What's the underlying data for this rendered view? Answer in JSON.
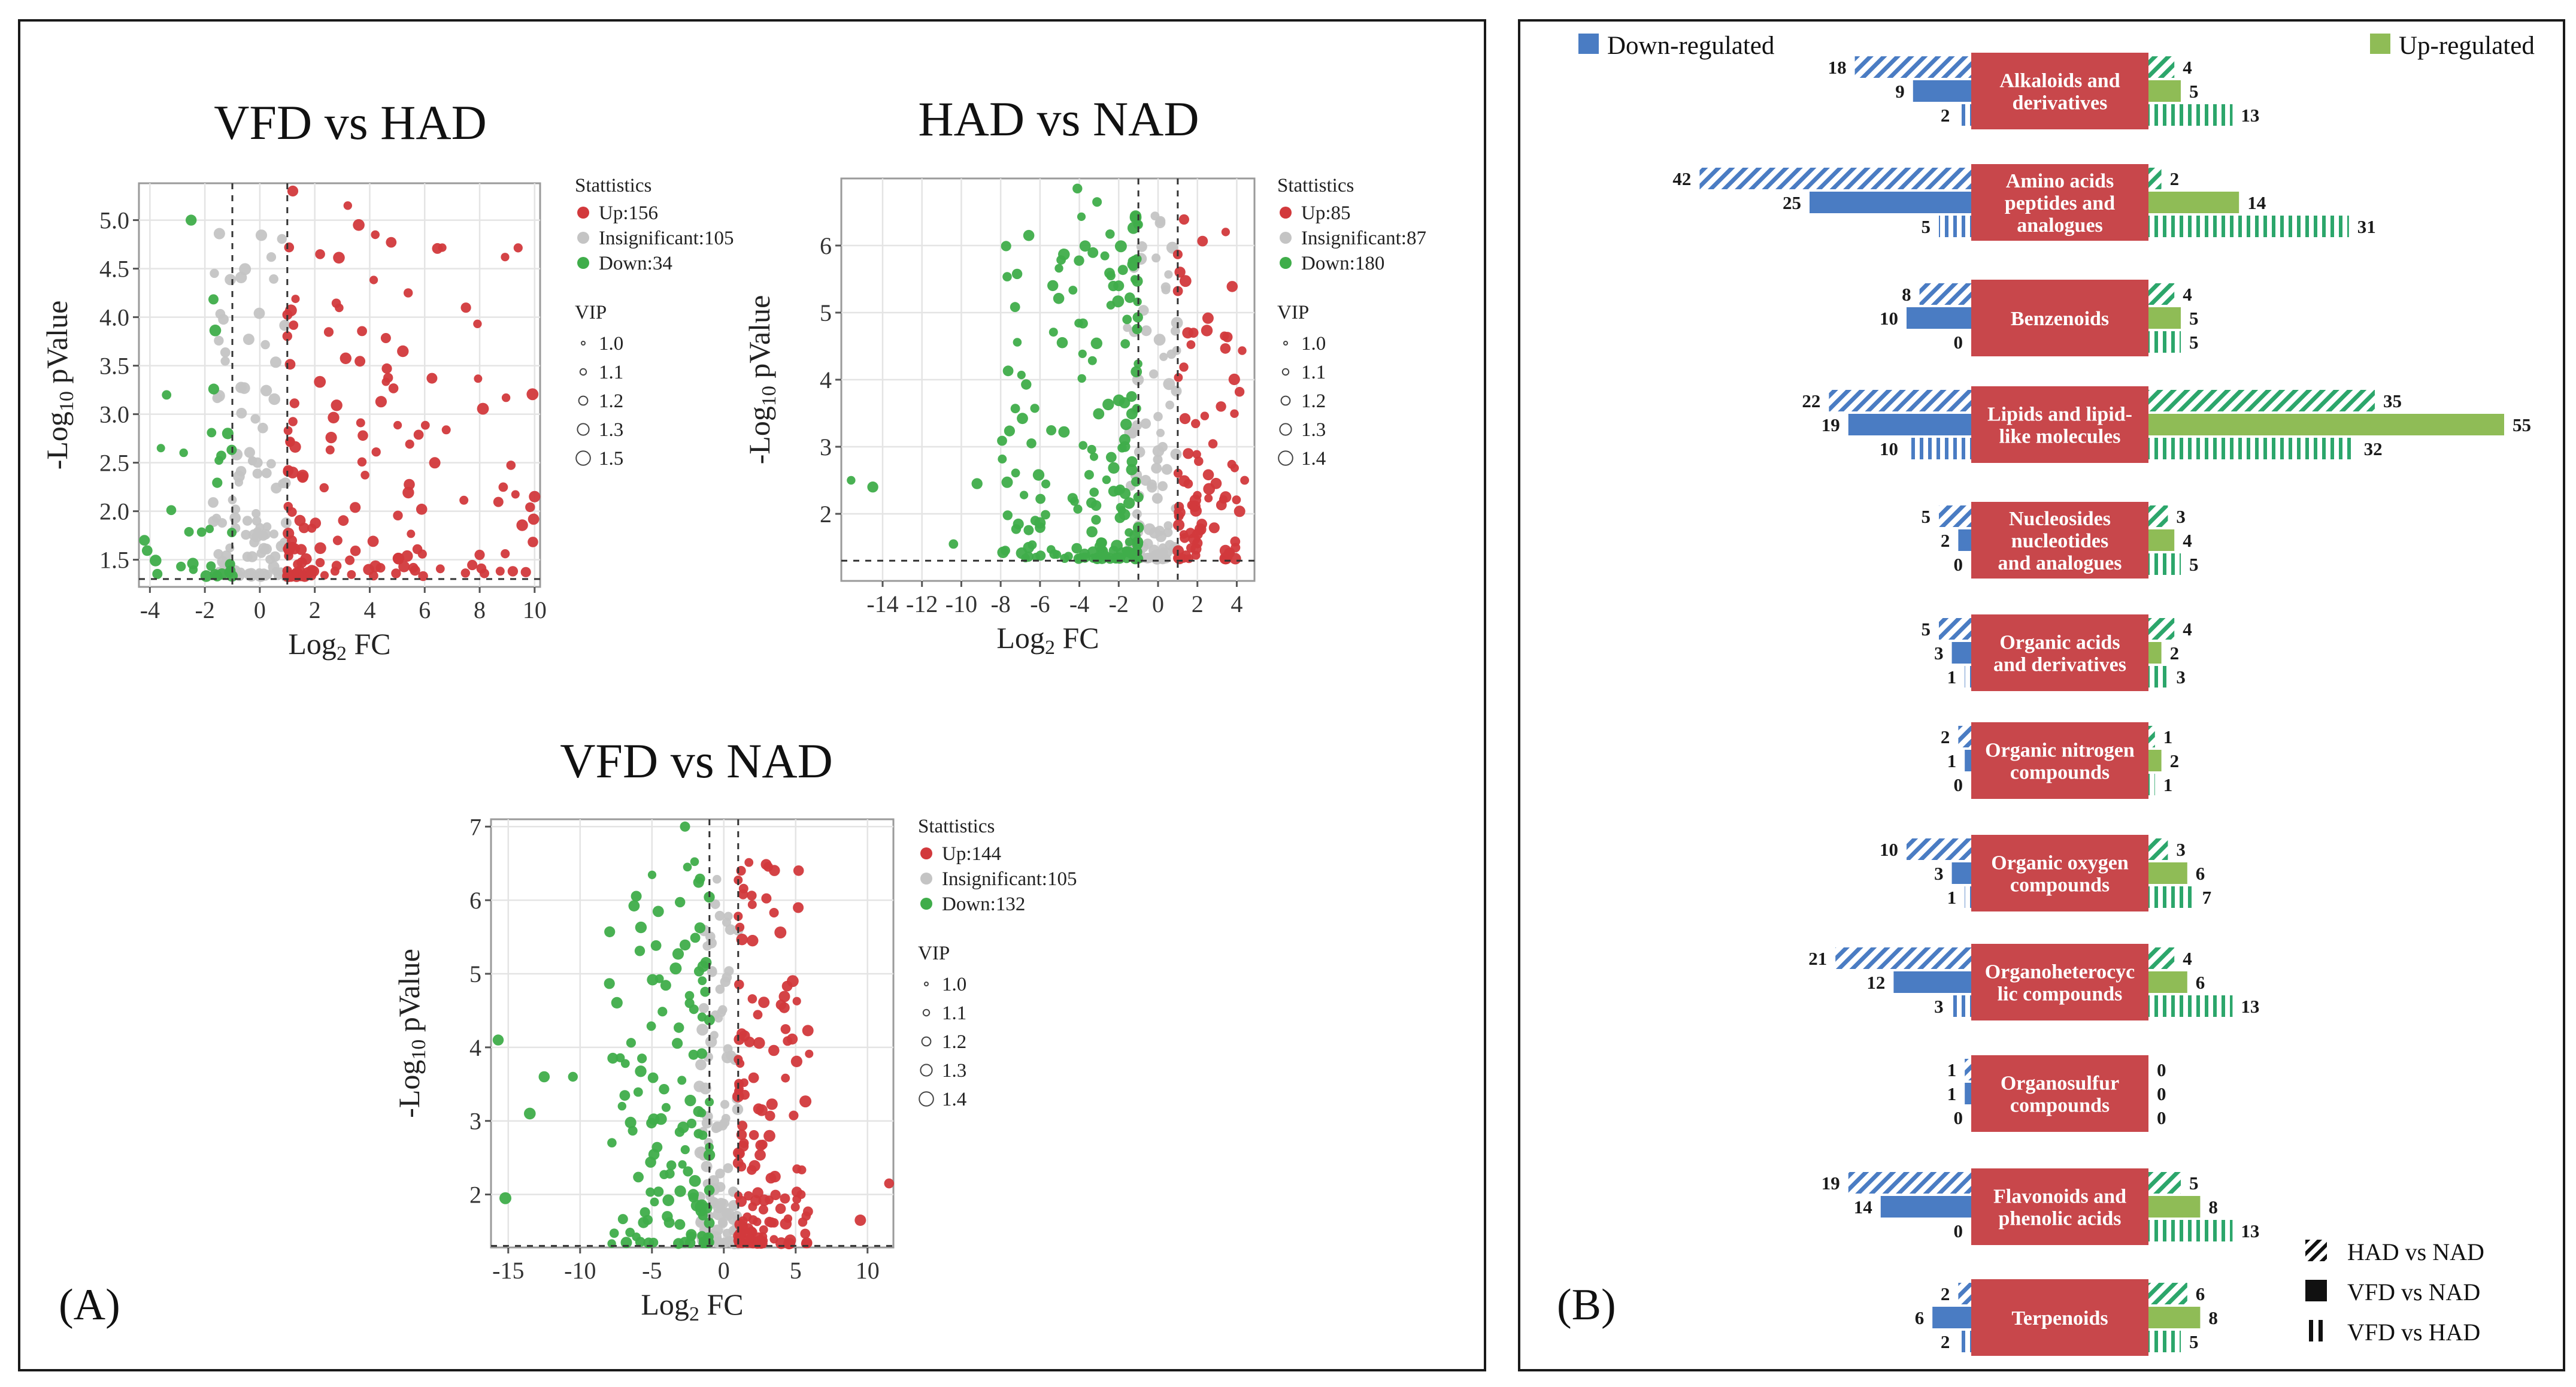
{
  "colors": {
    "up": "#d2393c",
    "down": "#3fad4a",
    "insig": "#c4c4c4",
    "down_bar": "#4a7cc3",
    "up_bar": "#8fbc56",
    "class_box": "#c8474b",
    "hatch_down": "#4a7cc3",
    "hatch_up": "#2ca66b"
  },
  "panel_a": {
    "label": "(A)",
    "chart_data": [
      {
        "type": "scatter",
        "title": "VFD vs HAD",
        "xlabel": "Log2 FC",
        "ylabel": "-Log10 pValue",
        "xlim": [
          -4.4,
          10.2
        ],
        "ylim": [
          1.22,
          5.38
        ],
        "xticks": [
          -4,
          -2,
          0,
          2,
          4,
          6,
          8,
          10
        ],
        "yticks": [
          1.5,
          2.0,
          2.5,
          3.0,
          3.5,
          4.0,
          4.5,
          5.0
        ],
        "ytick_labels": [
          "1.5",
          "2.0",
          "2.5",
          "3.0",
          "3.5",
          "4.0",
          "4.5",
          "5.0"
        ],
        "fc_threshold": [
          -1,
          1
        ],
        "p_threshold": 1.301,
        "legend_title": "Stattistics",
        "legend_items": [
          "Up:156",
          "Insignificant:105",
          "Down:34"
        ],
        "vip_title": "VIP",
        "vip_items": [
          "1.0",
          "1.1",
          "1.2",
          "1.3",
          "1.5"
        ],
        "counts": {
          "up": 156,
          "insig": 105,
          "down": 34
        },
        "seed": 11,
        "up_range": [
          1.0,
          10.0
        ],
        "down_range": [
          -4.3,
          -1.0
        ],
        "insig_range": [
          -1.7,
          1.0
        ],
        "highlights": [
          {
            "x": 1.2,
            "y": 5.3,
            "g": "up"
          },
          {
            "x": 3.2,
            "y": 5.15,
            "g": "up"
          },
          {
            "x": 3.6,
            "y": 4.95,
            "g": "up"
          },
          {
            "x": 4.2,
            "y": 4.85,
            "g": "up"
          },
          {
            "x": 5.4,
            "y": 4.25,
            "g": "up"
          },
          {
            "x": 8.0,
            "y": 1.55,
            "g": "up"
          },
          {
            "x": 10.0,
            "y": 2.15,
            "g": "up"
          },
          {
            "x": -2.5,
            "y": 5.0,
            "g": "down"
          },
          {
            "x": -4.2,
            "y": 1.7,
            "g": "down"
          },
          {
            "x": -3.6,
            "y": 2.65,
            "g": "down"
          }
        ]
      },
      {
        "type": "scatter",
        "title": "HAD vs NAD",
        "xlabel": "Log2 FC",
        "ylabel": "-Log10 pValue",
        "xlim": [
          -16.1,
          4.9
        ],
        "ylim": [
          1.0,
          7.0
        ],
        "xticks": [
          -14,
          -12,
          -10,
          -8,
          -6,
          -4,
          -2,
          0,
          2,
          4
        ],
        "yticks": [
          2,
          3,
          4,
          5,
          6
        ],
        "ytick_labels": [
          "2",
          "3",
          "4",
          "5",
          "6"
        ],
        "fc_threshold": [
          -1,
          1
        ],
        "p_threshold": 1.301,
        "legend_title": "Stattistics",
        "legend_items": [
          "Up:85",
          "Insignificant:87",
          "Down:180"
        ],
        "vip_title": "VIP",
        "vip_items": [
          "1.0",
          "1.1",
          "1.2",
          "1.3",
          "1.4"
        ],
        "counts": {
          "up": 85,
          "insig": 87,
          "down": 180
        },
        "seed": 23,
        "up_range": [
          1.0,
          4.5
        ],
        "down_range": [
          -8.0,
          -1.0
        ],
        "insig_range": [
          -1.6,
          1.0
        ],
        "highlights": [
          {
            "x": -4.1,
            "y": 6.85,
            "g": "down"
          },
          {
            "x": -3.1,
            "y": 6.65,
            "g": "down"
          },
          {
            "x": -15.6,
            "y": 2.5,
            "g": "down"
          },
          {
            "x": -14.5,
            "y": 2.4,
            "g": "down"
          },
          {
            "x": -10.4,
            "y": 1.55,
            "g": "down"
          },
          {
            "x": -9.2,
            "y": 2.45,
            "g": "down"
          },
          {
            "x": -2.0,
            "y": 5.4,
            "g": "down"
          },
          {
            "x": 1.8,
            "y": 4.7,
            "g": "up"
          },
          {
            "x": 4.4,
            "y": 2.5,
            "g": "up"
          },
          {
            "x": 3.2,
            "y": 3.6,
            "g": "up"
          }
        ]
      },
      {
        "type": "scatter",
        "title": "VFD vs NAD",
        "xlabel": "Log2 FC",
        "ylabel": "-Log10 pValue",
        "xlim": [
          -16.2,
          11.8
        ],
        "ylim": [
          1.28,
          7.1
        ],
        "xticks": [
          -15,
          -10,
          -5,
          0,
          5,
          10
        ],
        "yticks": [
          2,
          3,
          4,
          5,
          6,
          7
        ],
        "ytick_labels": [
          "2",
          "3",
          "4",
          "5",
          "6",
          "7"
        ],
        "fc_threshold": [
          -1,
          1
        ],
        "p_threshold": 1.301,
        "legend_title": "Stattistics",
        "legend_items": [
          "Up:144",
          "Insignificant:105",
          "Down:132"
        ],
        "vip_title": "VIP",
        "vip_items": [
          "1.0",
          "1.1",
          "1.2",
          "1.3",
          "1.4"
        ],
        "counts": {
          "up": 144,
          "insig": 105,
          "down": 132
        },
        "seed": 37,
        "up_range": [
          1.0,
          6.0
        ],
        "down_range": [
          -8.0,
          -1.0
        ],
        "insig_range": [
          -1.7,
          1.0
        ],
        "highlights": [
          {
            "x": -2.7,
            "y": 7.0,
            "g": "down"
          },
          {
            "x": -15.7,
            "y": 4.1,
            "g": "down"
          },
          {
            "x": -15.2,
            "y": 1.95,
            "g": "down"
          },
          {
            "x": -12.5,
            "y": 3.6,
            "g": "down"
          },
          {
            "x": -10.5,
            "y": 3.6,
            "g": "down"
          },
          {
            "x": -13.5,
            "y": 3.1,
            "g": "down"
          },
          {
            "x": 1.2,
            "y": 6.4,
            "g": "up"
          },
          {
            "x": 2.0,
            "y": 5.45,
            "g": "up"
          },
          {
            "x": 11.5,
            "y": 2.15,
            "g": "up"
          },
          {
            "x": 9.5,
            "y": 1.65,
            "g": "up"
          }
        ]
      }
    ]
  },
  "panel_b": {
    "label": "(B)",
    "chart_data": {
      "type": "bar",
      "orientation": "horizontal-diverging",
      "legend_down": "Down-regulated",
      "legend_up": "Up-regulated",
      "series_names": [
        "HAD vs NAD",
        "VFD vs NAD",
        "VFD vs HAD"
      ],
      "series_patterns": [
        "diagonal hatch",
        "solid",
        "vertical stripes"
      ],
      "categories": [
        {
          "name": [
            "Alkaloids and",
            "derivatives"
          ],
          "down": [
            18,
            9,
            2
          ],
          "up": [
            4,
            5,
            13
          ]
        },
        {
          "name": [
            "Amino acids",
            "peptides and",
            "analogues"
          ],
          "down": [
            42,
            25,
            5
          ],
          "up": [
            2,
            14,
            31
          ]
        },
        {
          "name": [
            "Benzenoids"
          ],
          "down": [
            8,
            10,
            0
          ],
          "up": [
            4,
            5,
            5
          ]
        },
        {
          "name": [
            "Lipids and lipid-",
            "like molecules"
          ],
          "down": [
            22,
            19,
            10
          ],
          "up": [
            35,
            55,
            32
          ]
        },
        {
          "name": [
            "Nucleosides",
            "nucleotides",
            "and analogues"
          ],
          "down": [
            5,
            2,
            0
          ],
          "up": [
            3,
            4,
            5
          ]
        },
        {
          "name": [
            "Organic acids",
            "and derivatives"
          ],
          "down": [
            5,
            3,
            1
          ],
          "up": [
            4,
            2,
            3
          ]
        },
        {
          "name": [
            "Organic nitrogen",
            "compounds"
          ],
          "down": [
            2,
            1,
            0
          ],
          "up": [
            1,
            2,
            1
          ]
        },
        {
          "name": [
            "Organic oxygen",
            "compounds"
          ],
          "down": [
            10,
            3,
            1
          ],
          "up": [
            3,
            6,
            7
          ]
        },
        {
          "name": [
            "Organoheterocyc",
            "lic compounds"
          ],
          "down": [
            21,
            12,
            3
          ],
          "up": [
            4,
            6,
            13
          ]
        },
        {
          "name": [
            "Organosulfur",
            "compounds"
          ],
          "down": [
            1,
            1,
            0
          ],
          "up": [
            0,
            0,
            0
          ]
        },
        {
          "name": [
            "Flavonoids and",
            "phenolic acids"
          ],
          "down": [
            19,
            14,
            0
          ],
          "up": [
            5,
            8,
            13
          ]
        },
        {
          "name": [
            "Terpenoids"
          ],
          "down": [
            2,
            6,
            2
          ],
          "up": [
            6,
            8,
            5
          ]
        }
      ]
    }
  }
}
